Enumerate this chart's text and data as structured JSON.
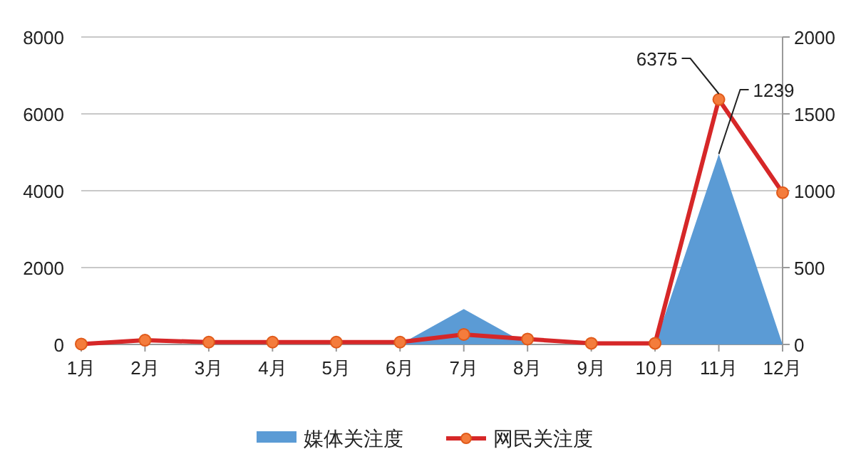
{
  "chart_data": {
    "type": "line",
    "categories": [
      "1月",
      "2月",
      "3月",
      "4月",
      "5月",
      "6月",
      "7月",
      "8月",
      "9月",
      "10月",
      "11月",
      "12月"
    ],
    "series": [
      {
        "name": "媒体关注度",
        "type": "area",
        "axis": "y2",
        "color": "#5b9bd5",
        "values": [
          0,
          0,
          0,
          0,
          0,
          0,
          230,
          0,
          0,
          0,
          1239,
          0
        ],
        "value_labels": [
          null,
          null,
          null,
          null,
          null,
          null,
          null,
          null,
          null,
          null,
          "1239",
          null
        ]
      },
      {
        "name": "网民关注度",
        "color": "#d62728",
        "marker": "circle",
        "values": [
          10,
          110,
          60,
          60,
          60,
          60,
          260,
          140,
          30,
          30,
          6375,
          3950
        ],
        "value_labels": [
          null,
          null,
          null,
          null,
          null,
          null,
          null,
          null,
          null,
          null,
          "6375",
          null
        ]
      }
    ],
    "ylim": [
      0,
      8000
    ],
    "yticks": [
      0,
      2000,
      4000,
      6000,
      8000
    ],
    "y2lim": [
      0,
      2000
    ],
    "y2ticks": [
      0,
      500,
      1000,
      1500,
      2000
    ],
    "grid": "y",
    "legend": "bottom"
  }
}
